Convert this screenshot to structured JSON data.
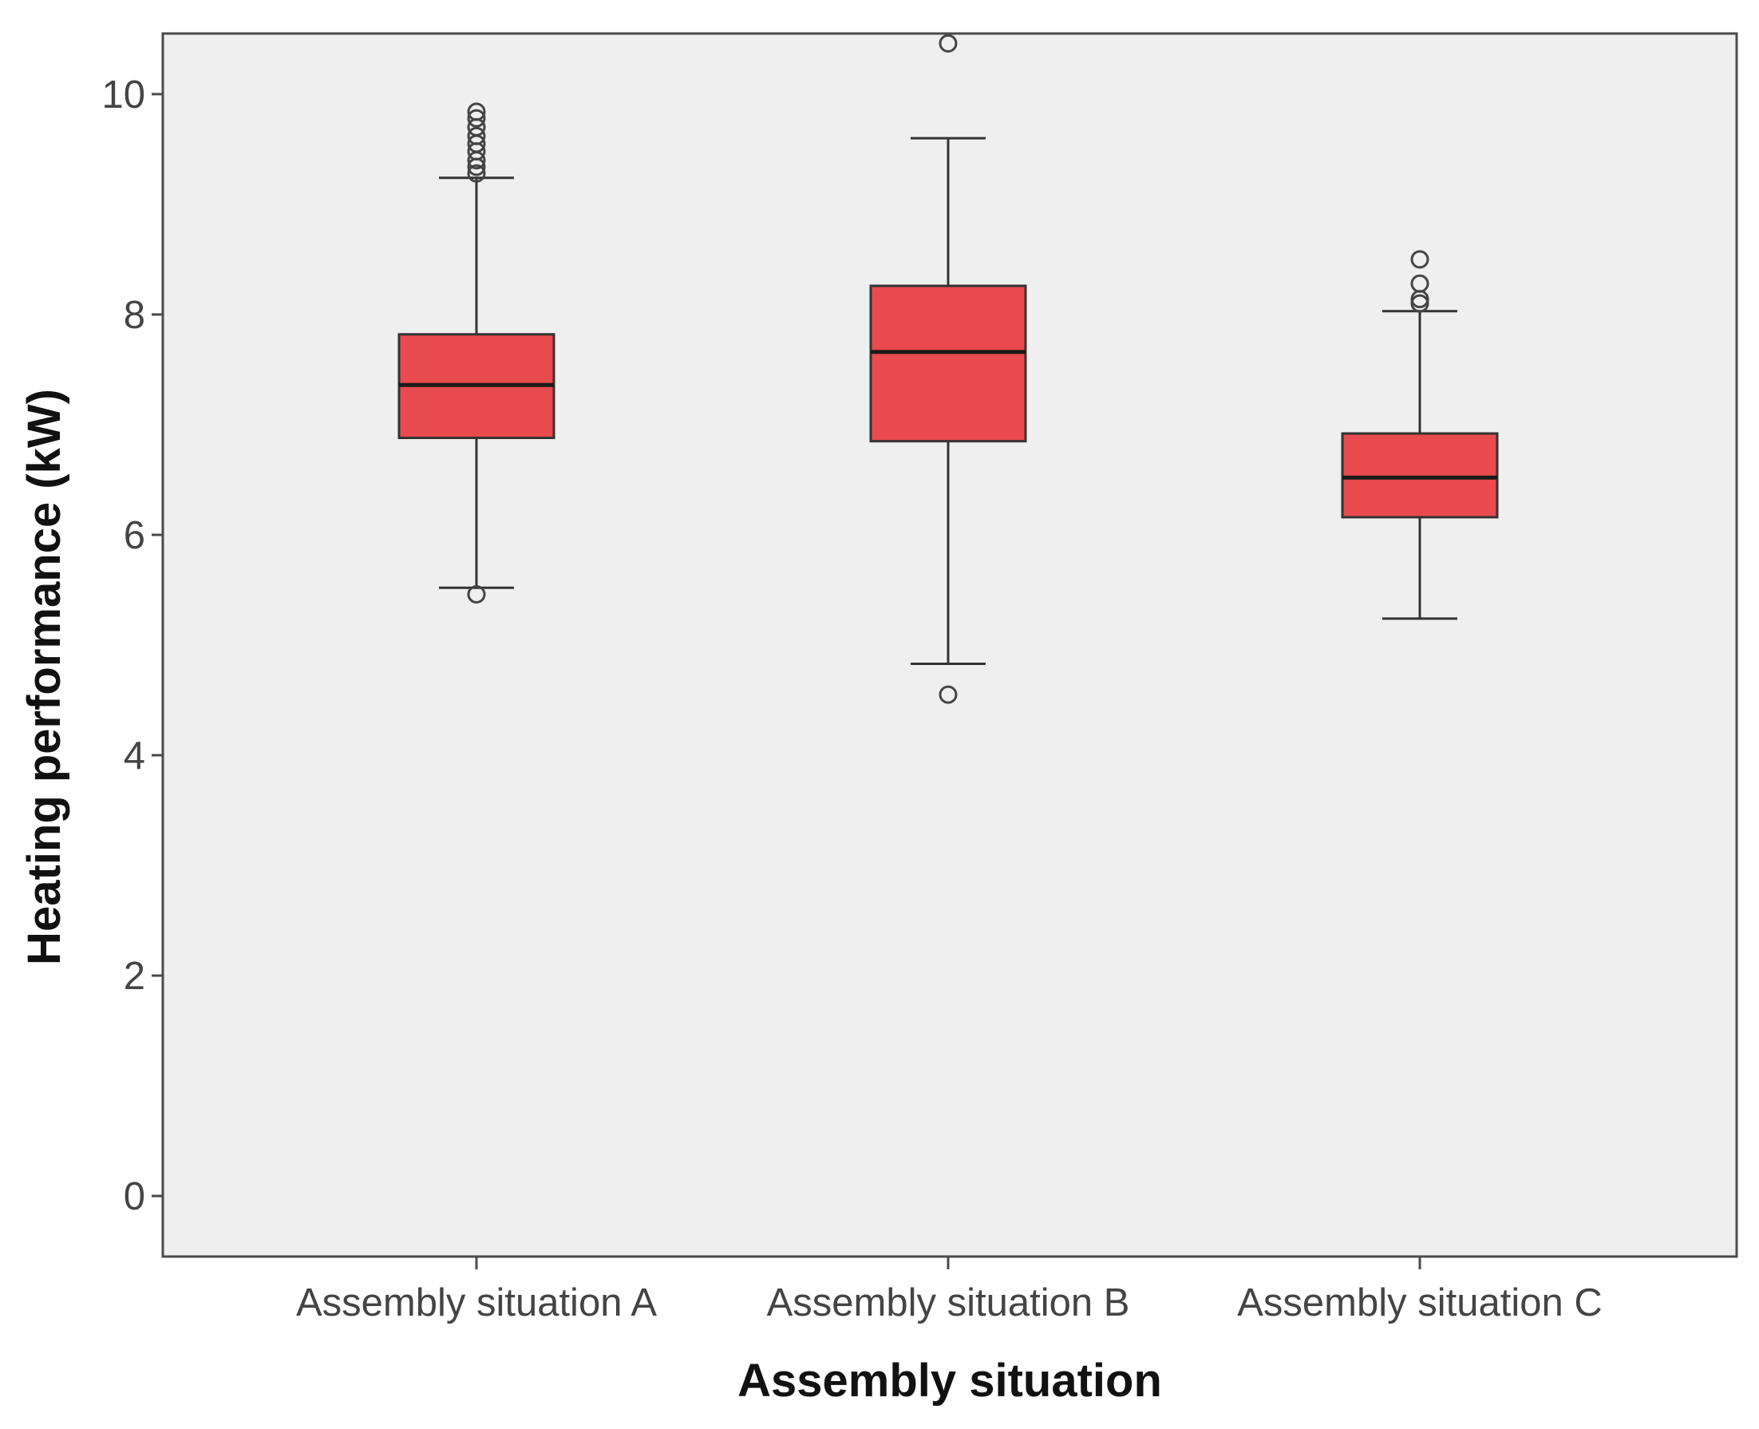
{
  "chart_data": {
    "type": "boxplot",
    "title": "",
    "xlabel": "Assembly situation",
    "ylabel": "Heating performance (kW)",
    "ylim": [
      -0.55,
      10.55
    ],
    "yticks": [
      0,
      2,
      4,
      6,
      8,
      10
    ],
    "ytick_labels": [
      "0",
      "2",
      "4",
      "6",
      "8",
      "10"
    ],
    "grid": false,
    "colors": {
      "plot_background": "#efefef",
      "box_fill": "#e84a4d",
      "box_stroke": "#333333",
      "median": "#1a1a1a",
      "whisker": "#333333",
      "outlier": "#444444"
    },
    "categories": [
      "Assembly situation A",
      "Assembly situation B",
      "Assembly situation C"
    ],
    "boxes": [
      {
        "name": "Assembly situation A",
        "whisker_low": 5.52,
        "q1": 6.88,
        "median": 7.36,
        "q3": 7.82,
        "whisker_high": 9.24,
        "outliers": [
          5.46,
          9.28,
          9.34,
          9.4,
          9.48,
          9.55,
          9.62,
          9.7,
          9.78,
          9.84
        ]
      },
      {
        "name": "Assembly situation B",
        "whisker_low": 4.83,
        "q1": 6.85,
        "median": 7.66,
        "q3": 8.26,
        "whisker_high": 9.6,
        "outliers": [
          4.55,
          10.46
        ]
      },
      {
        "name": "Assembly situation C",
        "whisker_low": 5.24,
        "q1": 6.16,
        "median": 6.52,
        "q3": 6.92,
        "whisker_high": 8.03,
        "outliers": [
          8.1,
          8.14,
          8.28,
          8.5
        ]
      }
    ]
  }
}
